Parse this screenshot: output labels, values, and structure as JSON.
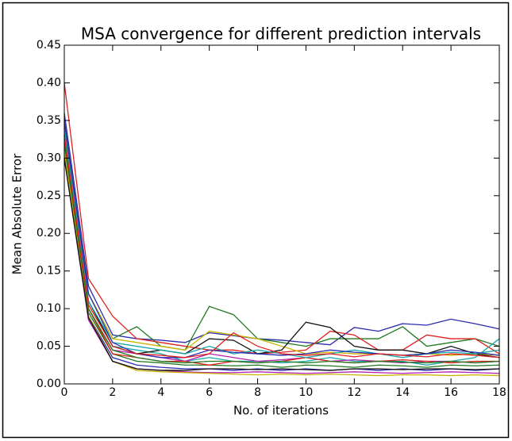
{
  "chart_data": {
    "type": "line",
    "title": "MSA convergence for different prediction intervals",
    "xlabel": "No. of iterations",
    "ylabel": "Mean Absolute Error",
    "x": [
      0,
      1,
      2,
      3,
      4,
      5,
      6,
      7,
      8,
      9,
      10,
      11,
      12,
      13,
      14,
      15,
      16,
      17,
      18
    ],
    "xlim": [
      0,
      18
    ],
    "ylim": [
      0,
      0.45
    ],
    "xticks": [
      0,
      2,
      4,
      6,
      8,
      10,
      12,
      14,
      16,
      18
    ],
    "yticks": [
      {
        "value": 0,
        "label": "0.00"
      },
      {
        "value": 0.05,
        "label": "0.05"
      },
      {
        "value": 0.1,
        "label": "0.10"
      },
      {
        "value": 0.15,
        "label": "0.15"
      },
      {
        "value": 0.2,
        "label": "0.20"
      },
      {
        "value": 0.25,
        "label": "0.25"
      },
      {
        "value": 0.3,
        "label": "0.30"
      },
      {
        "value": 0.35,
        "label": "0.35"
      },
      {
        "value": 0.4,
        "label": "0.40"
      },
      {
        "value": 0.45,
        "label": "0.45"
      }
    ],
    "grid": false,
    "series": [
      {
        "color": "#2b2bb0",
        "values": [
          0.36,
          0.13,
          0.065,
          0.06,
          0.058,
          0.055,
          0.068,
          0.064,
          0.06,
          0.058,
          0.055,
          0.052,
          0.075,
          0.07,
          0.08,
          0.078,
          0.086,
          0.08,
          0.073
        ]
      },
      {
        "color": "#1f7a1f",
        "values": [
          0.34,
          0.12,
          0.06,
          0.076,
          0.05,
          0.045,
          0.103,
          0.092,
          0.06,
          0.055,
          0.05,
          0.06,
          0.06,
          0.06,
          0.076,
          0.05,
          0.055,
          0.06,
          0.05
        ]
      },
      {
        "color": "#e02020",
        "values": [
          0.4,
          0.14,
          0.09,
          0.06,
          0.055,
          0.05,
          0.045,
          0.045,
          0.04,
          0.042,
          0.045,
          0.07,
          0.065,
          0.045,
          0.045,
          0.065,
          0.06,
          0.06,
          0.04
        ]
      },
      {
        "color": "#1aa8a8",
        "values": [
          0.35,
          0.11,
          0.05,
          0.045,
          0.04,
          0.03,
          0.035,
          0.03,
          0.03,
          0.028,
          0.03,
          0.035,
          0.03,
          0.03,
          0.03,
          0.025,
          0.03,
          0.035,
          0.06
        ]
      },
      {
        "color": "#b020b0",
        "values": [
          0.33,
          0.1,
          0.045,
          0.04,
          0.035,
          0.03,
          0.04,
          0.035,
          0.03,
          0.032,
          0.035,
          0.03,
          0.032,
          0.03,
          0.028,
          0.03,
          0.03,
          0.028,
          0.03
        ]
      },
      {
        "color": "#c8b400",
        "values": [
          0.35,
          0.12,
          0.06,
          0.055,
          0.05,
          0.045,
          0.07,
          0.065,
          0.06,
          0.05,
          0.04,
          0.042,
          0.04,
          0.04,
          0.038,
          0.04,
          0.038,
          0.04,
          0.038
        ]
      },
      {
        "color": "#111111",
        "values": [
          0.34,
          0.11,
          0.05,
          0.04,
          0.045,
          0.04,
          0.06,
          0.058,
          0.04,
          0.045,
          0.082,
          0.075,
          0.05,
          0.045,
          0.045,
          0.04,
          0.05,
          0.04,
          0.035
        ]
      },
      {
        "color": "#2b2bb0",
        "values": [
          0.32,
          0.09,
          0.035,
          0.025,
          0.022,
          0.02,
          0.02,
          0.018,
          0.02,
          0.018,
          0.02,
          0.018,
          0.02,
          0.018,
          0.02,
          0.018,
          0.02,
          0.018,
          0.02
        ]
      },
      {
        "color": "#1f7a1f",
        "values": [
          0.31,
          0.095,
          0.04,
          0.03,
          0.028,
          0.025,
          0.025,
          0.024,
          0.025,
          0.022,
          0.025,
          0.024,
          0.022,
          0.025,
          0.024,
          0.022,
          0.025,
          0.024,
          0.025
        ]
      },
      {
        "color": "#e02020",
        "values": [
          0.33,
          0.1,
          0.04,
          0.035,
          0.03,
          0.03,
          0.025,
          0.03,
          0.028,
          0.03,
          0.035,
          0.03,
          0.028,
          0.03,
          0.032,
          0.03,
          0.028,
          0.03,
          0.03
        ]
      },
      {
        "color": "#1aa8a8",
        "values": [
          0.34,
          0.11,
          0.055,
          0.05,
          0.045,
          0.04,
          0.05,
          0.04,
          0.045,
          0.04,
          0.035,
          0.04,
          0.045,
          0.04,
          0.035,
          0.04,
          0.042,
          0.04,
          0.045
        ]
      },
      {
        "color": "#b020b0",
        "values": [
          0.3,
          0.085,
          0.03,
          0.02,
          0.018,
          0.016,
          0.015,
          0.015,
          0.016,
          0.015,
          0.014,
          0.015,
          0.016,
          0.015,
          0.014,
          0.015,
          0.016,
          0.015,
          0.014
        ]
      },
      {
        "color": "#c8b400",
        "values": [
          0.31,
          0.09,
          0.03,
          0.018,
          0.016,
          0.015,
          0.014,
          0.013,
          0.012,
          0.013,
          0.012,
          0.013,
          0.012,
          0.011,
          0.012,
          0.012,
          0.011,
          0.012,
          0.011
        ]
      },
      {
        "color": "#111111",
        "values": [
          0.3,
          0.088,
          0.03,
          0.02,
          0.018,
          0.018,
          0.02,
          0.02,
          0.019,
          0.02,
          0.019,
          0.018,
          0.02,
          0.02,
          0.019,
          0.02,
          0.02,
          0.019,
          0.02
        ]
      },
      {
        "color": "#2b2bb0",
        "values": [
          0.35,
          0.12,
          0.055,
          0.04,
          0.035,
          0.035,
          0.045,
          0.042,
          0.04,
          0.038,
          0.04,
          0.045,
          0.042,
          0.04,
          0.038,
          0.04,
          0.045,
          0.042,
          0.038
        ]
      },
      {
        "color": "#1f7a1f",
        "values": [
          0.32,
          0.1,
          0.045,
          0.035,
          0.03,
          0.028,
          0.03,
          0.03,
          0.028,
          0.03,
          0.028,
          0.03,
          0.028,
          0.03,
          0.029,
          0.028,
          0.03,
          0.028,
          0.03
        ]
      },
      {
        "color": "#e02020",
        "values": [
          0.33,
          0.105,
          0.05,
          0.04,
          0.038,
          0.035,
          0.04,
          0.068,
          0.05,
          0.04,
          0.038,
          0.04,
          0.036,
          0.04,
          0.038,
          0.036,
          0.04,
          0.038,
          0.035
        ]
      }
    ]
  }
}
